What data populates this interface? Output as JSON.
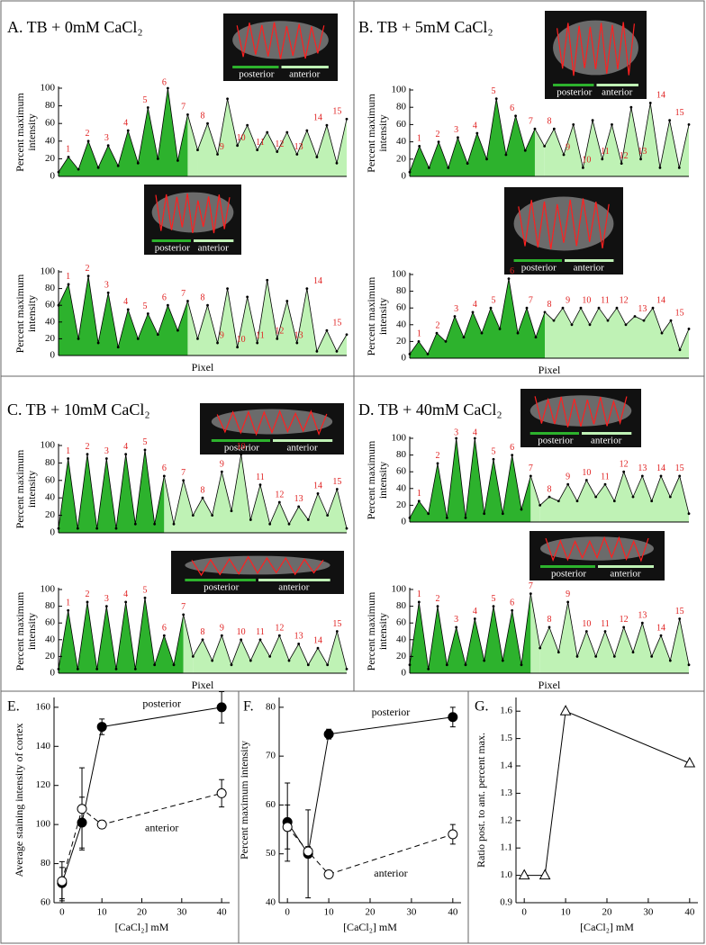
{
  "chart_data": [
    {
      "type": "area",
      "title": "A. TB + 0mM CaCl₂",
      "y_label": [
        "Percent maximum",
        "intensity"
      ],
      "ylim": [
        0,
        100
      ],
      "yticks": [
        0,
        20,
        40,
        60,
        80,
        100
      ],
      "annotations": [
        "1",
        "2",
        "3",
        "4",
        "5",
        "6",
        "7",
        "8",
        "9",
        "10",
        "11",
        "12",
        "13",
        "14",
        "15"
      ],
      "annotation_color": "#e02020",
      "series": [
        {
          "name": "posterior",
          "color": "#2db22d",
          "values": [
            5,
            22,
            8,
            40,
            10,
            35,
            12,
            52,
            15,
            78,
            20,
            100,
            18,
            70
          ]
        },
        {
          "name": "anterior",
          "color": "#bff2b5",
          "values": [
            30,
            60,
            25,
            88,
            35,
            58,
            30,
            50,
            28,
            50,
            25,
            52,
            22,
            58,
            15,
            65
          ]
        }
      ]
    },
    {
      "type": "area",
      "y_label": [
        "Percent maximum",
        "intensity"
      ],
      "x_label": "Pixel",
      "ylim": [
        0,
        100
      ],
      "yticks": [
        0,
        20,
        40,
        60,
        80,
        100
      ],
      "annotations": [
        "1",
        "2",
        "3",
        "4",
        "5",
        "6",
        "7",
        "8",
        "9",
        "10",
        "11",
        "12",
        "13",
        "14",
        "15"
      ],
      "annotation_color": "#e02020",
      "series": [
        {
          "name": "posterior",
          "color": "#2db22d",
          "values": [
            60,
            85,
            20,
            95,
            15,
            75,
            10,
            55,
            20,
            50,
            25,
            60,
            30,
            65
          ]
        },
        {
          "name": "anterior",
          "color": "#bff2b5",
          "values": [
            20,
            60,
            15,
            80,
            10,
            70,
            15,
            90,
            20,
            65,
            15,
            80,
            5,
            30,
            5,
            25
          ]
        }
      ]
    },
    {
      "type": "area",
      "title": "B. TB + 5mM CaCl₂",
      "y_label": [
        "Percent maximum",
        "intensity"
      ],
      "ylim": [
        0,
        100
      ],
      "yticks": [
        0,
        20,
        40,
        60,
        80,
        100
      ],
      "annotations": [
        "1",
        "2",
        "3",
        "4",
        "5",
        "6",
        "7",
        "8",
        "9",
        "10",
        "11",
        "12",
        "13",
        "14",
        "15"
      ],
      "annotation_color": "#e02020",
      "series": [
        {
          "name": "posterior",
          "color": "#2db22d",
          "values": [
            5,
            35,
            10,
            40,
            10,
            45,
            15,
            50,
            20,
            90,
            25,
            70,
            30,
            55
          ]
        },
        {
          "name": "anterior",
          "color": "#bff2b5",
          "values": [
            35,
            55,
            25,
            60,
            10,
            65,
            20,
            60,
            15,
            80,
            20,
            85,
            10,
            65,
            10,
            60
          ]
        }
      ]
    },
    {
      "type": "area",
      "y_label": [
        "Percent maximum",
        "intensity"
      ],
      "x_label": "Pixel",
      "ylim": [
        0,
        100
      ],
      "yticks": [
        0,
        20,
        40,
        60,
        80,
        100
      ],
      "annotations": [
        "1",
        "2",
        "3",
        "4",
        "5",
        "6",
        "7",
        "8",
        "9",
        "10",
        "11",
        "12",
        "13",
        "14",
        "15"
      ],
      "annotation_color": "#e02020",
      "series": [
        {
          "name": "posterior",
          "color": "#2db22d",
          "values": [
            5,
            20,
            5,
            30,
            20,
            50,
            25,
            55,
            30,
            60,
            35,
            95,
            30,
            60,
            25,
            55
          ]
        },
        {
          "name": "anterior",
          "color": "#bff2b5",
          "values": [
            45,
            60,
            40,
            60,
            40,
            60,
            45,
            60,
            40,
            50,
            45,
            60,
            30,
            45,
            10,
            35
          ]
        }
      ]
    },
    {
      "type": "area",
      "title": "C. TB + 10mM CaCl₂",
      "y_label": [
        "Percent maximum",
        "intensity"
      ],
      "ylim": [
        0,
        100
      ],
      "yticks": [
        0,
        20,
        40,
        60,
        80,
        100
      ],
      "annotations": [
        "1",
        "2",
        "3",
        "4",
        "5",
        "6",
        "7",
        "8",
        "9",
        "10",
        "11",
        "12",
        "13",
        "14",
        "15"
      ],
      "annotation_color": "#e02020",
      "series": [
        {
          "name": "posterior",
          "color": "#2db22d",
          "values": [
            5,
            85,
            5,
            90,
            5,
            85,
            5,
            90,
            10,
            95,
            10,
            65
          ]
        },
        {
          "name": "anterior",
          "color": "#bff2b5",
          "values": [
            10,
            60,
            20,
            40,
            20,
            70,
            25,
            90,
            15,
            55,
            10,
            35,
            10,
            30,
            15,
            45,
            20,
            50,
            5
          ]
        }
      ]
    },
    {
      "type": "area",
      "y_label": [
        "Percent maximum",
        "intensity"
      ],
      "x_label": "Pixel",
      "ylim": [
        0,
        100
      ],
      "yticks": [
        0,
        20,
        40,
        60,
        80,
        100
      ],
      "annotations": [
        "1",
        "2",
        "3",
        "4",
        "5",
        "6",
        "7",
        "8",
        "9",
        "10",
        "11",
        "12",
        "13",
        "14",
        "15"
      ],
      "annotation_color": "#e02020",
      "series": [
        {
          "name": "posterior",
          "color": "#2db22d",
          "values": [
            5,
            75,
            5,
            85,
            5,
            80,
            5,
            85,
            5,
            90,
            10,
            45,
            10,
            70
          ]
        },
        {
          "name": "anterior",
          "color": "#bff2b5",
          "values": [
            20,
            40,
            15,
            45,
            10,
            40,
            15,
            40,
            20,
            45,
            15,
            35,
            10,
            30,
            10,
            50,
            5
          ]
        }
      ]
    },
    {
      "type": "area",
      "title": "D. TB + 40mM CaCl₂",
      "y_label": [
        "Percent maximum",
        "intensity"
      ],
      "ylim": [
        0,
        100
      ],
      "yticks": [
        0,
        20,
        40,
        60,
        80,
        100
      ],
      "annotations": [
        "1",
        "2",
        "3",
        "4",
        "5",
        "6",
        "7",
        "8",
        "9",
        "10",
        "11",
        "12",
        "13",
        "14",
        "15"
      ],
      "annotation_color": "#e02020",
      "series": [
        {
          "name": "posterior",
          "color": "#2db22d",
          "values": [
            5,
            25,
            10,
            70,
            5,
            100,
            5,
            100,
            10,
            75,
            10,
            80,
            15,
            55
          ]
        },
        {
          "name": "anterior",
          "color": "#bff2b5",
          "values": [
            20,
            30,
            25,
            45,
            25,
            50,
            30,
            45,
            25,
            60,
            30,
            55,
            25,
            55,
            30,
            55,
            10
          ]
        }
      ]
    },
    {
      "type": "area",
      "y_label": [
        "Percent maximum",
        "intensity"
      ],
      "x_label": "Pixel",
      "ylim": [
        0,
        100
      ],
      "yticks": [
        0,
        20,
        40,
        60,
        80,
        100
      ],
      "annotations": [
        "1",
        "2",
        "3",
        "4",
        "5",
        "6",
        "7",
        "8",
        "9",
        "10",
        "11",
        "12",
        "13",
        "14",
        "15"
      ],
      "annotation_color": "#e02020",
      "series": [
        {
          "name": "posterior",
          "color": "#2db22d",
          "values": [
            10,
            85,
            5,
            80,
            10,
            55,
            10,
            65,
            15,
            80,
            15,
            75,
            10,
            95
          ]
        },
        {
          "name": "anterior",
          "color": "#bff2b5",
          "values": [
            30,
            55,
            25,
            85,
            20,
            50,
            20,
            50,
            20,
            55,
            25,
            60,
            20,
            45,
            15,
            65,
            10
          ]
        }
      ]
    },
    {
      "type": "line",
      "title": "E.",
      "y_label": "Average staining intensity of cortex",
      "x_label": "[CaCl₂] mM",
      "xlim": [
        -2,
        42
      ],
      "xticks": [
        0,
        10,
        20,
        30,
        40
      ],
      "ylim": [
        60,
        165
      ],
      "yticks": [
        60,
        80,
        100,
        120,
        140,
        160
      ],
      "series": [
        {
          "name": "posterior",
          "marker": "filled-circle",
          "dashed": false,
          "x": [
            0,
            5,
            10,
            40
          ],
          "values": [
            70,
            101,
            150,
            160
          ],
          "errors": [
            8,
            13,
            4,
            8
          ]
        },
        {
          "name": "anterior",
          "marker": "open-circle",
          "dashed": true,
          "x": [
            0,
            5,
            10,
            40
          ],
          "values": [
            71,
            108,
            100,
            116
          ],
          "errors": [
            10,
            21,
            2,
            7
          ]
        }
      ]
    },
    {
      "type": "line",
      "title": "F.",
      "y_label": "Percent maximum intensity",
      "x_label": "[CaCl₂] mM",
      "xlim": [
        -2,
        42
      ],
      "xticks": [
        0,
        10,
        20,
        30,
        40
      ],
      "ylim": [
        40,
        82
      ],
      "yticks": [
        40,
        50,
        60,
        70,
        80
      ],
      "series": [
        {
          "name": "posterior",
          "marker": "filled-circle",
          "dashed": false,
          "x": [
            0,
            5,
            10,
            40
          ],
          "values": [
            56.5,
            50,
            74.5,
            78
          ],
          "errors": [
            8,
            9,
            1,
            2
          ]
        },
        {
          "name": "anterior",
          "marker": "open-circle",
          "dashed": true,
          "x": [
            0,
            5,
            10,
            40
          ],
          "values": [
            55.5,
            50.5,
            45.8,
            54
          ],
          "errors": [
            4.5,
            1,
            0.5,
            2
          ]
        }
      ]
    },
    {
      "type": "line",
      "title": "G.",
      "y_label": "Ratio post. to ant. percent max.",
      "x_label": "[CaCl₂] mM",
      "xlim": [
        -2,
        42
      ],
      "xticks": [
        0,
        10,
        20,
        30,
        40
      ],
      "ylim": [
        0.9,
        1.65
      ],
      "yticks": [
        0.9,
        {
          "value": 1,
          "label": "1.0"
        },
        1.1,
        1.2,
        1.3,
        1.4,
        1.5,
        1.6
      ],
      "series": [
        {
          "marker": "open-triangle",
          "dashed": false,
          "x": [
            0,
            5,
            10,
            40
          ],
          "values": [
            1,
            1,
            1.6,
            1.41
          ]
        }
      ]
    }
  ]
}
